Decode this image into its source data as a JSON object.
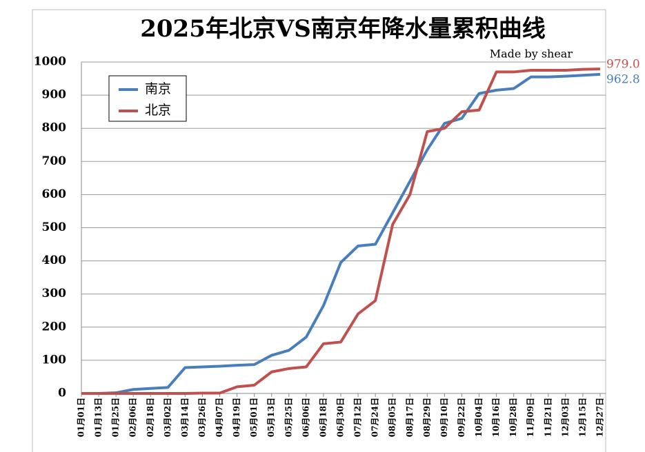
{
  "chart_data": {
    "type": "line",
    "title": "2025年北京VS南京年降水量累积曲线",
    "subtitle": "Made by shear",
    "categories": [
      "01月01日",
      "01月13日",
      "01月25日",
      "02月06日",
      "02月18日",
      "03月02日",
      "03月14日",
      "03月26日",
      "04月07日",
      "04月19日",
      "05月01日",
      "05月13日",
      "05月25日",
      "06月06日",
      "06月18日",
      "06月30日",
      "07月12日",
      "07月24日",
      "08月05日",
      "08月17日",
      "08月29日",
      "09月10日",
      "09月22日",
      "10月04日",
      "10月16日",
      "10月28日",
      "11月09日",
      "11月21日",
      "12月03日",
      "12月15日",
      "12月27日"
    ],
    "series": [
      {
        "name": "南京",
        "color": "#4a7ebb",
        "end_label": "962.8",
        "values": [
          0,
          0,
          2,
          12,
          15,
          18,
          78,
          80,
          82,
          85,
          87,
          115,
          130,
          170,
          265,
          395,
          445,
          450,
          545,
          640,
          735,
          815,
          830,
          905,
          915,
          920,
          955,
          955,
          957,
          960,
          962.8
        ]
      },
      {
        "name": "北京",
        "color": "#c0504d",
        "end_label": "979.0",
        "values": [
          0,
          0,
          0,
          0,
          0,
          0,
          0,
          1,
          1,
          20,
          25,
          65,
          75,
          80,
          150,
          155,
          240,
          280,
          510,
          600,
          790,
          800,
          850,
          855,
          970,
          970,
          975,
          975,
          975,
          978,
          979
        ]
      }
    ],
    "ylim": [
      0,
      1000
    ],
    "yticks": [
      0,
      100,
      200,
      300,
      400,
      500,
      600,
      700,
      800,
      900,
      1000
    ],
    "grid": true,
    "legend": "upper left"
  }
}
